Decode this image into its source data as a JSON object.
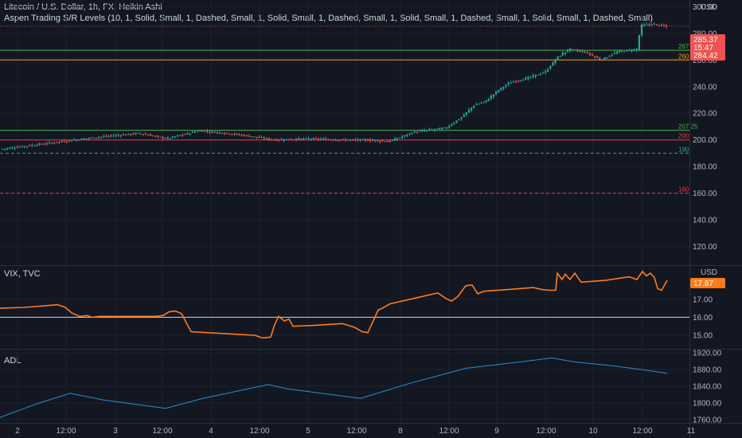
{
  "header": {
    "title": "Litecoin / U.S. Dollar, 1h, FX, Heikin Ashi",
    "indicator": "Aspen Trading S/R Levels (10, 1, Solid, Small, 1, Dashed, Small, 1, Solid, Small, 1, Dashed, Small, 1, Solid, Small, 1, Dashed, Small, 1, Solid, Small, 1, Dashed, Small)",
    "currency": "USD"
  },
  "vix_pane": {
    "label": "VIX, TVC",
    "currency": "USD",
    "last_value": "17.87"
  },
  "adl_pane": {
    "label": "ADL"
  },
  "price_badges": {
    "upper": "285.37",
    "countdown": "15:47",
    "lower": "284.42"
  },
  "colors": {
    "background": "#131722",
    "bull": "#26a69a",
    "bear": "#ef5350",
    "vix_line": "#ff7a1a",
    "adl_line": "#2d8ecf",
    "green_level": "#4caf50",
    "orange_level": "#f59b1e",
    "red_level": "#f23645",
    "teal_level": "#26a69a"
  },
  "levels": [
    {
      "value": 267.25,
      "label": "267.25",
      "color": "#4caf50",
      "style": "solid"
    },
    {
      "value": 260,
      "label": "260",
      "color": "#f59b1e",
      "style": "solid"
    },
    {
      "value": 207.25,
      "label": "207.25",
      "color": "#4caf50",
      "style": "solid"
    },
    {
      "value": 200,
      "label": "200",
      "color": "#f23645",
      "style": "solid"
    },
    {
      "value": 190,
      "label": "190",
      "color": "#26a69a",
      "style": "dashed"
    },
    {
      "value": 160,
      "label": "160",
      "color": "#f23645",
      "style": "dashed"
    }
  ],
  "chart_data": [
    {
      "type": "candlestick",
      "title": "Litecoin / U.S. Dollar, 1h, FX, Heikin Ashi",
      "ylim": [
        106,
        305
      ],
      "yticks": [
        120,
        140,
        160,
        180,
        200,
        220,
        240,
        260,
        280,
        300
      ],
      "x_tick_labels": [
        "2",
        "12:00",
        "3",
        "12:00",
        "4",
        "12:00",
        "5",
        "12:00",
        "8",
        "12:00",
        "9",
        "12:00",
        "10",
        "12:00",
        "11"
      ],
      "price_anchors": [
        [
          0,
          193
        ],
        [
          40,
          196
        ],
        [
          80,
          199
        ],
        [
          120,
          202
        ],
        [
          175,
          205
        ],
        [
          210,
          201
        ],
        [
          250,
          207
        ],
        [
          300,
          204
        ],
        [
          345,
          200
        ],
        [
          390,
          201
        ],
        [
          430,
          200
        ],
        [
          460,
          200
        ],
        [
          490,
          199
        ],
        [
          520,
          206
        ],
        [
          560,
          209
        ],
        [
          580,
          217
        ],
        [
          595,
          226
        ],
        [
          610,
          229
        ],
        [
          625,
          237
        ],
        [
          640,
          243
        ],
        [
          660,
          246
        ],
        [
          685,
          251
        ],
        [
          700,
          262
        ],
        [
          715,
          268
        ],
        [
          735,
          266
        ],
        [
          755,
          260
        ],
        [
          775,
          266
        ],
        [
          800,
          268
        ],
        [
          805,
          286
        ],
        [
          820,
          287
        ],
        [
          838,
          285
        ]
      ],
      "last_price": 285.37
    },
    {
      "type": "line",
      "name": "VIX, TVC",
      "ylim": [
        14.25,
        18.85
      ],
      "yticks": [
        15.0,
        16.0,
        17.0
      ],
      "ytick_labels": [
        "15.00",
        "16.00",
        "17.00"
      ],
      "reference_value": 16.0,
      "points": [
        [
          0,
          16.5
        ],
        [
          30,
          16.55
        ],
        [
          60,
          16.65
        ],
        [
          72,
          16.7
        ],
        [
          82,
          16.55
        ],
        [
          90,
          16.25
        ],
        [
          100,
          16.05
        ],
        [
          110,
          16.1
        ],
        [
          115,
          16.0
        ],
        [
          125,
          16.05
        ],
        [
          160,
          16.05
        ],
        [
          195,
          16.05
        ],
        [
          205,
          16.1
        ],
        [
          212,
          16.3
        ],
        [
          220,
          16.35
        ],
        [
          228,
          16.2
        ],
        [
          240,
          15.2
        ],
        [
          260,
          15.15
        ],
        [
          300,
          15.05
        ],
        [
          320,
          15.0
        ],
        [
          330,
          14.85
        ],
        [
          340,
          14.9
        ],
        [
          345,
          15.6
        ],
        [
          350,
          16.05
        ],
        [
          357,
          15.8
        ],
        [
          363,
          15.9
        ],
        [
          368,
          15.5
        ],
        [
          395,
          15.55
        ],
        [
          430,
          15.65
        ],
        [
          445,
          15.45
        ],
        [
          455,
          15.2
        ],
        [
          462,
          15.15
        ],
        [
          475,
          16.4
        ],
        [
          480,
          16.5
        ],
        [
          490,
          16.75
        ],
        [
          520,
          17.05
        ],
        [
          550,
          17.35
        ],
        [
          560,
          17.05
        ],
        [
          567,
          16.9
        ],
        [
          575,
          17.15
        ],
        [
          585,
          17.75
        ],
        [
          593,
          17.8
        ],
        [
          600,
          17.3
        ],
        [
          608,
          17.45
        ],
        [
          640,
          17.55
        ],
        [
          670,
          17.65
        ],
        [
          680,
          17.55
        ],
        [
          690,
          17.5
        ],
        [
          698,
          17.5
        ],
        [
          700,
          18.45
        ],
        [
          706,
          18.1
        ],
        [
          710,
          18.4
        ],
        [
          716,
          18.1
        ],
        [
          722,
          18.45
        ],
        [
          730,
          17.95
        ],
        [
          760,
          18.05
        ],
        [
          790,
          18.25
        ],
        [
          800,
          18.1
        ],
        [
          807,
          18.55
        ],
        [
          812,
          18.3
        ],
        [
          817,
          18.45
        ],
        [
          822,
          18.2
        ],
        [
          826,
          17.6
        ],
        [
          831,
          17.5
        ],
        [
          838,
          18.05
        ]
      ],
      "last_value": 17.87
    },
    {
      "type": "line",
      "name": "ADL",
      "ylim": [
        1752,
        1928
      ],
      "yticks": [
        1760,
        1800,
        1840,
        1880,
        1920
      ],
      "ytick_labels": [
        "1760.00",
        "1800.00",
        "1840.00",
        "1880.00",
        "1920.00"
      ],
      "points": [
        [
          0,
          1765
        ],
        [
          45,
          1797
        ],
        [
          88,
          1823
        ],
        [
          130,
          1807
        ],
        [
          208,
          1787
        ],
        [
          255,
          1811
        ],
        [
          337,
          1844
        ],
        [
          360,
          1834
        ],
        [
          453,
          1811
        ],
        [
          515,
          1847
        ],
        [
          585,
          1883
        ],
        [
          655,
          1899
        ],
        [
          693,
          1908
        ],
        [
          720,
          1899
        ],
        [
          770,
          1889
        ],
        [
          810,
          1879
        ],
        [
          838,
          1871
        ]
      ]
    }
  ]
}
